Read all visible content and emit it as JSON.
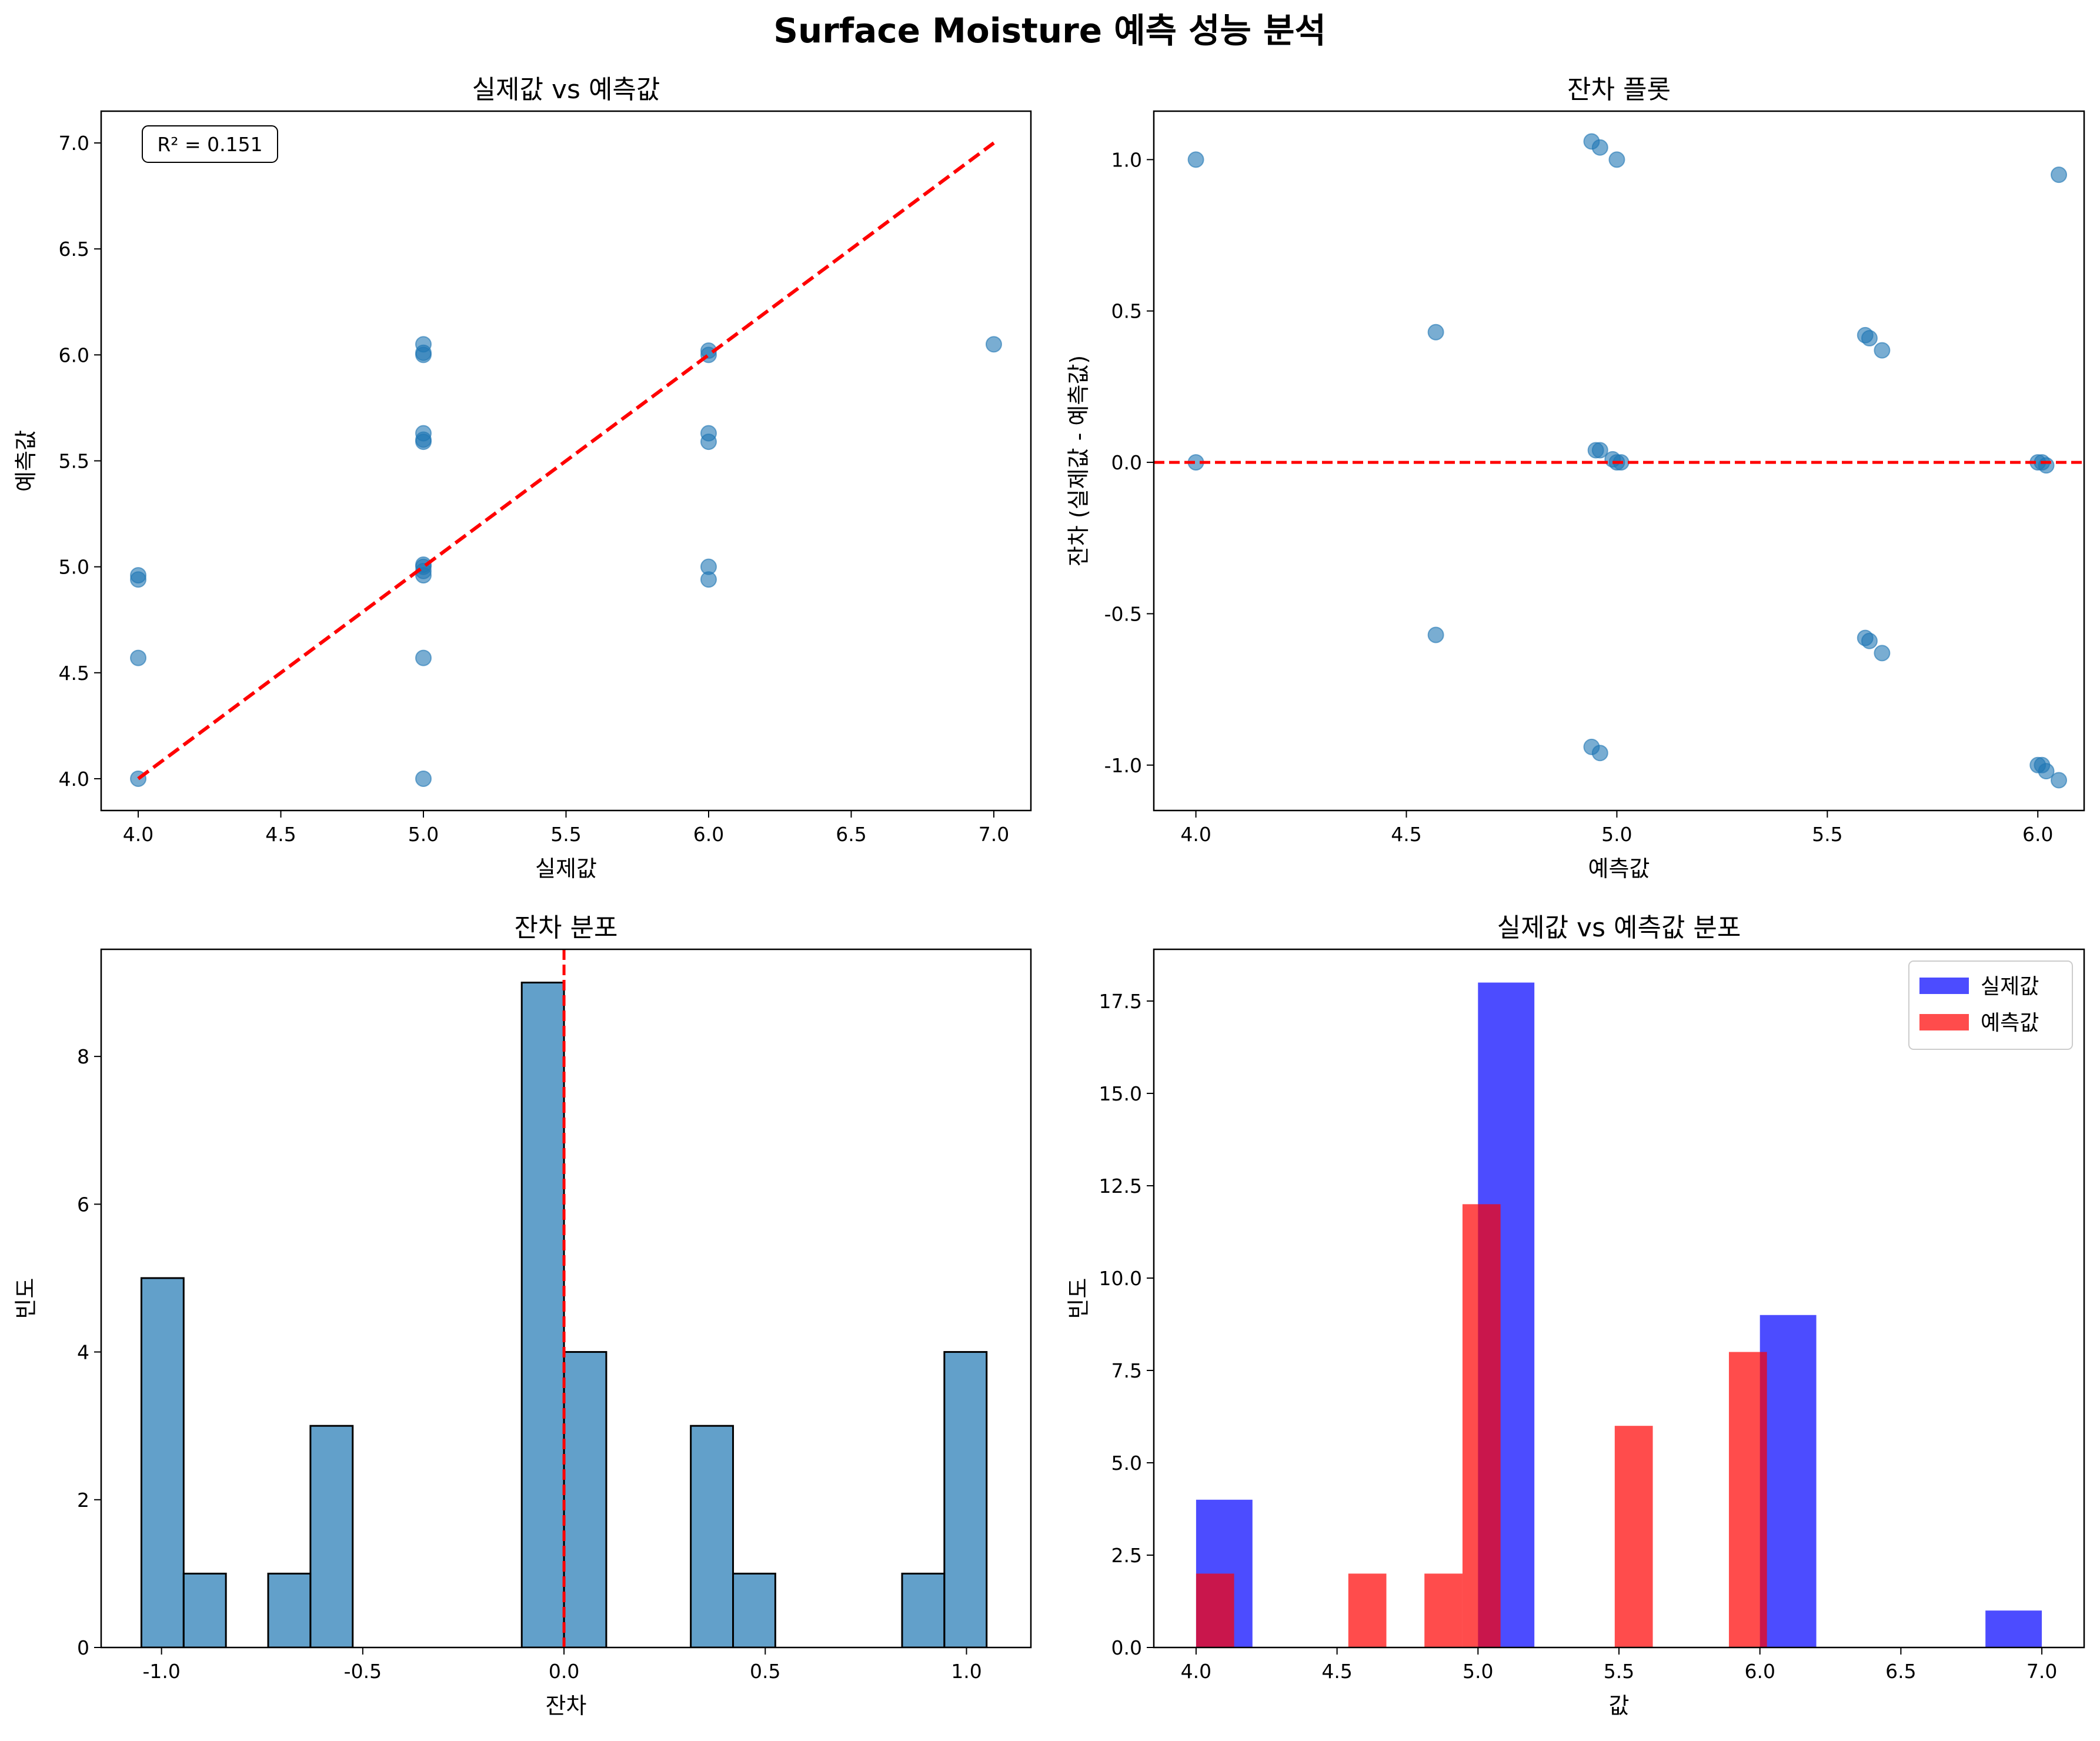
{
  "figure": {
    "title": "Surface Moisture 예측 성능 분석"
  },
  "colors": {
    "points": "#1f77b4",
    "reference_line": "#ff0000",
    "hist_fill": "#1f77b4",
    "actual": "#0000ff",
    "predicted": "#ff0000"
  },
  "chart_data": [
    {
      "type": "scatter",
      "title": "실제값 vs 예측값",
      "xlabel": "실제값",
      "ylabel": "예측값",
      "xlim": [
        3.87,
        7.13
      ],
      "ylim": [
        3.85,
        7.15
      ],
      "xticks": [
        4.0,
        4.5,
        5.0,
        5.5,
        6.0,
        6.5,
        7.0
      ],
      "yticks": [
        4.0,
        4.5,
        5.0,
        5.5,
        6.0,
        6.5,
        7.0
      ],
      "annotation": "R² = 0.151",
      "reference_line": {
        "style": "dashed",
        "x": [
          4.0,
          7.0
        ],
        "y": [
          4.0,
          7.0
        ]
      },
      "points": [
        {
          "x": 4.0,
          "y": 4.0
        },
        {
          "x": 4.0,
          "y": 4.57
        },
        {
          "x": 4.0,
          "y": 4.94
        },
        {
          "x": 4.0,
          "y": 4.96
        },
        {
          "x": 5.0,
          "y": 4.0
        },
        {
          "x": 5.0,
          "y": 4.57
        },
        {
          "x": 5.0,
          "y": 4.96
        },
        {
          "x": 5.0,
          "y": 4.98
        },
        {
          "x": 5.0,
          "y": 5.0
        },
        {
          "x": 5.0,
          "y": 5.01
        },
        {
          "x": 5.0,
          "y": 5.59
        },
        {
          "x": 5.0,
          "y": 5.6
        },
        {
          "x": 5.0,
          "y": 5.63
        },
        {
          "x": 5.0,
          "y": 6.0
        },
        {
          "x": 5.0,
          "y": 6.01
        },
        {
          "x": 5.0,
          "y": 6.05
        },
        {
          "x": 6.0,
          "y": 4.94
        },
        {
          "x": 6.0,
          "y": 5.0
        },
        {
          "x": 6.0,
          "y": 5.59
        },
        {
          "x": 6.0,
          "y": 5.63
        },
        {
          "x": 6.0,
          "y": 6.0
        },
        {
          "x": 6.0,
          "y": 6.02
        },
        {
          "x": 7.0,
          "y": 6.05
        }
      ]
    },
    {
      "type": "scatter",
      "title": "잔차 플롯",
      "xlabel": "예측값",
      "ylabel": "잔차 (실제값 - 예측값)",
      "xlim": [
        3.9,
        6.11
      ],
      "ylim": [
        -1.15,
        1.16
      ],
      "xticks": [
        4.0,
        4.5,
        5.0,
        5.5,
        6.0
      ],
      "yticks": [
        -1.0,
        -0.5,
        0.0,
        0.5,
        1.0
      ],
      "reference_line": {
        "style": "dashed",
        "y": 0.0
      },
      "points": [
        {
          "x": 4.0,
          "y": 1.0
        },
        {
          "x": 4.0,
          "y": 0.0
        },
        {
          "x": 4.57,
          "y": 0.43
        },
        {
          "x": 4.57,
          "y": -0.57
        },
        {
          "x": 4.94,
          "y": 1.06
        },
        {
          "x": 4.96,
          "y": 1.04
        },
        {
          "x": 5.0,
          "y": 1.0
        },
        {
          "x": 4.95,
          "y": 0.04
        },
        {
          "x": 4.96,
          "y": 0.04
        },
        {
          "x": 4.99,
          "y": 0.01
        },
        {
          "x": 5.0,
          "y": 0.0
        },
        {
          "x": 5.01,
          "y": 0.0
        },
        {
          "x": 4.94,
          "y": -0.94
        },
        {
          "x": 4.96,
          "y": -0.96
        },
        {
          "x": 5.59,
          "y": 0.42
        },
        {
          "x": 5.6,
          "y": 0.41
        },
        {
          "x": 5.63,
          "y": 0.37
        },
        {
          "x": 5.59,
          "y": -0.58
        },
        {
          "x": 5.6,
          "y": -0.59
        },
        {
          "x": 5.63,
          "y": -0.63
        },
        {
          "x": 6.0,
          "y": 0.0
        },
        {
          "x": 6.01,
          "y": 0.0
        },
        {
          "x": 6.02,
          "y": -0.01
        },
        {
          "x": 6.0,
          "y": -1.0
        },
        {
          "x": 6.01,
          "y": -1.0
        },
        {
          "x": 6.02,
          "y": -1.02
        },
        {
          "x": 6.05,
          "y": -1.05
        },
        {
          "x": 6.05,
          "y": 0.95
        }
      ]
    },
    {
      "type": "bar",
      "title": "잔차 분포",
      "xlabel": "잔차",
      "ylabel": "빈도",
      "xlim": [
        -1.15,
        1.16
      ],
      "ylim": [
        0,
        9.45
      ],
      "xticks": [
        -1.0,
        -0.5,
        0.0,
        0.5,
        1.0
      ],
      "yticks": [
        0,
        2,
        4,
        6,
        8
      ],
      "reference_line": {
        "style": "dashed",
        "x": 0.0
      },
      "bin_edges": [
        -1.05,
        -0.945,
        -0.84,
        -0.735,
        -0.63,
        -0.525,
        -0.42,
        -0.315,
        -0.21,
        -0.105,
        0.0,
        0.105,
        0.21,
        0.315,
        0.42,
        0.525,
        0.63,
        0.735,
        0.84,
        0.945,
        1.05
      ],
      "values": [
        5,
        1,
        0,
        1,
        3,
        0,
        0,
        0,
        0,
        9,
        4,
        0,
        0,
        3,
        1,
        0,
        0,
        0,
        1,
        4
      ]
    },
    {
      "type": "bar",
      "title": "실제값 vs 예측값 분포",
      "xlabel": "값",
      "ylabel": "빈도",
      "xlim": [
        3.85,
        7.15
      ],
      "ylim": [
        0,
        18.9
      ],
      "xticks": [
        4.0,
        4.5,
        5.0,
        5.5,
        6.0,
        6.5,
        7.0
      ],
      "yticks": [
        0.0,
        2.5,
        5.0,
        7.5,
        10.0,
        12.5,
        15.0,
        17.5
      ],
      "legend": "upper right",
      "series": [
        {
          "name": "실제값",
          "bins": [
            [
              4.0,
              4.2,
              4
            ],
            [
              5.0,
              5.2,
              18
            ],
            [
              6.0,
              6.2,
              9
            ],
            [
              6.8,
              7.0,
              1
            ]
          ]
        },
        {
          "name": "예측값",
          "bins": [
            [
              4.0,
              4.135,
              2
            ],
            [
              4.54,
              4.675,
              2
            ],
            [
              4.81,
              4.945,
              2
            ],
            [
              4.945,
              5.08,
              12
            ],
            [
              5.485,
              5.62,
              6
            ],
            [
              5.89,
              6.025,
              8
            ]
          ]
        }
      ]
    }
  ]
}
